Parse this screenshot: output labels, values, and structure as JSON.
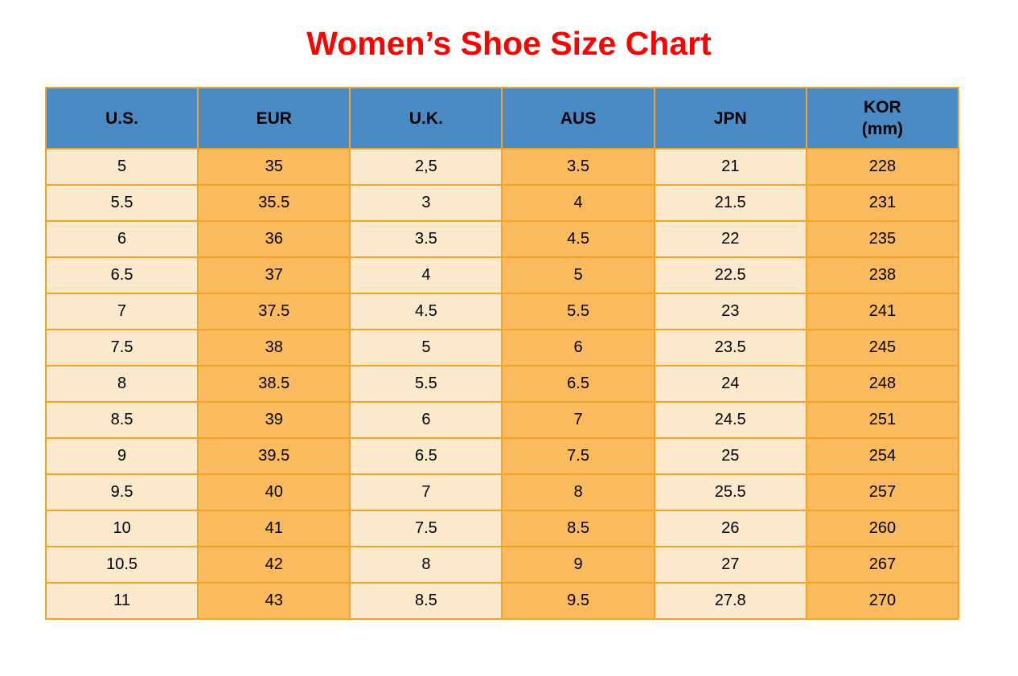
{
  "title": "Women’s Shoe Size Chart",
  "colors": {
    "title_red": "#fe0000",
    "header_blue": "#4a8bc6",
    "cell_cream": "#fde9cb",
    "cell_orange": "#fcba5e",
    "border_orange": "#f1a32c",
    "text_black": "#000000"
  },
  "chart_data": {
    "type": "table",
    "title": "Women’s Shoe Size Chart",
    "columns": [
      "U.S.",
      "EUR",
      "U.K.",
      "AUS",
      "JPN",
      "KOR\n(mm)"
    ],
    "rows": [
      [
        "5",
        "35",
        "2,5",
        "3.5",
        "21",
        "228"
      ],
      [
        "5.5",
        "35.5",
        "3",
        "4",
        "21.5",
        "231"
      ],
      [
        "6",
        "36",
        "3.5",
        "4.5",
        "22",
        "235"
      ],
      [
        "6.5",
        "37",
        "4",
        "5",
        "22.5",
        "238"
      ],
      [
        "7",
        "37.5",
        "4.5",
        "5.5",
        "23",
        "241"
      ],
      [
        "7.5",
        "38",
        "5",
        "6",
        "23.5",
        "245"
      ],
      [
        "8",
        "38.5",
        "5.5",
        "6.5",
        "24",
        "248"
      ],
      [
        "8.5",
        "39",
        "6",
        "7",
        "24.5",
        "251"
      ],
      [
        "9",
        "39.5",
        "6.5",
        "7.5",
        "25",
        "254"
      ],
      [
        "9.5",
        "40",
        "7",
        "8",
        "25.5",
        "257"
      ],
      [
        "10",
        "41",
        "7.5",
        "8.5",
        "26",
        "260"
      ],
      [
        "10.5",
        "42",
        "8",
        "9",
        "27",
        "267"
      ],
      [
        "11",
        "43",
        "8.5",
        "9.5",
        "27.8",
        "270"
      ]
    ]
  }
}
